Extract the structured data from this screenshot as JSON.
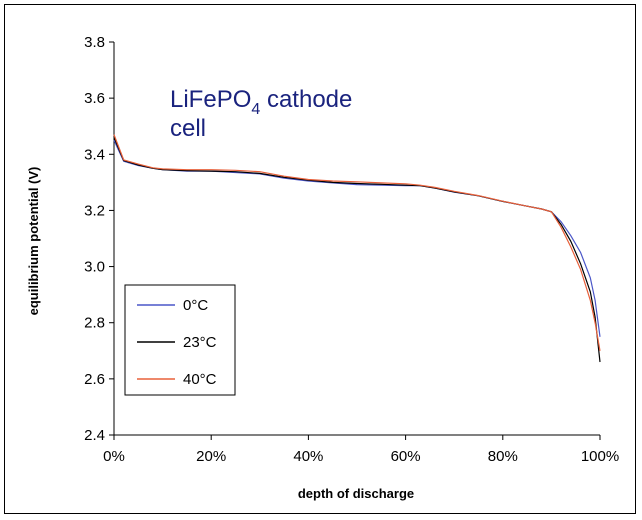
{
  "chart_data": {
    "type": "line",
    "title": "",
    "annotation": {
      "line1_main": "LiFePO",
      "line1_sub": "4",
      "line1_rest": " cathode",
      "line2": "cell",
      "color": "#1a237e"
    },
    "xlabel": "depth of discharge",
    "ylabel": "equilibrium potential (V)",
    "xlim": [
      0,
      100
    ],
    "ylim": [
      2.4,
      3.8
    ],
    "x_ticks": [
      0,
      20,
      40,
      60,
      80,
      100
    ],
    "x_tick_labels": [
      "0%",
      "20%",
      "40%",
      "60%",
      "80%",
      "100%"
    ],
    "y_ticks": [
      2.4,
      2.6,
      2.8,
      3.0,
      3.2,
      3.4,
      3.6,
      3.8
    ],
    "y_tick_labels": [
      "2.4",
      "2.6",
      "2.8",
      "3.0",
      "3.2",
      "3.4",
      "3.6",
      "3.8"
    ],
    "grid": false,
    "legend_position": "bottom-left",
    "series": [
      {
        "name": "0°C",
        "color": "#4a56c8",
        "x": [
          0,
          2,
          5,
          8,
          10,
          15,
          20,
          25,
          30,
          35,
          40,
          45,
          50,
          55,
          60,
          63,
          66,
          70,
          75,
          80,
          85,
          88,
          90,
          92,
          94,
          96,
          98,
          99,
          100
        ],
        "y": [
          3.45,
          3.375,
          3.36,
          3.35,
          3.345,
          3.34,
          3.34,
          3.335,
          3.33,
          3.315,
          3.305,
          3.298,
          3.292,
          3.29,
          3.288,
          3.288,
          3.28,
          3.265,
          3.252,
          3.232,
          3.215,
          3.205,
          3.195,
          3.16,
          3.11,
          3.05,
          2.96,
          2.88,
          2.75
        ]
      },
      {
        "name": "23°C",
        "color": "#000000",
        "x": [
          0,
          2,
          5,
          8,
          10,
          15,
          20,
          25,
          30,
          35,
          40,
          45,
          50,
          55,
          60,
          63,
          66,
          70,
          75,
          80,
          85,
          88,
          90,
          92,
          94,
          96,
          98,
          99,
          100
        ],
        "y": [
          3.46,
          3.378,
          3.362,
          3.35,
          3.345,
          3.342,
          3.34,
          3.338,
          3.332,
          3.318,
          3.308,
          3.3,
          3.296,
          3.293,
          3.29,
          3.288,
          3.28,
          3.266,
          3.252,
          3.232,
          3.215,
          3.205,
          3.195,
          3.15,
          3.09,
          3.01,
          2.91,
          2.82,
          2.66
        ]
      },
      {
        "name": "40°C",
        "color": "#e8603a",
        "x": [
          0,
          2,
          5,
          8,
          10,
          15,
          20,
          25,
          30,
          35,
          40,
          45,
          50,
          55,
          60,
          63,
          66,
          70,
          75,
          80,
          85,
          88,
          90,
          92,
          94,
          96,
          98,
          99,
          100
        ],
        "y": [
          3.47,
          3.38,
          3.365,
          3.352,
          3.348,
          3.345,
          3.345,
          3.343,
          3.338,
          3.322,
          3.31,
          3.305,
          3.302,
          3.298,
          3.295,
          3.29,
          3.282,
          3.268,
          3.253,
          3.233,
          3.215,
          3.205,
          3.195,
          3.14,
          3.07,
          2.99,
          2.88,
          2.8,
          2.7
        ]
      }
    ]
  }
}
